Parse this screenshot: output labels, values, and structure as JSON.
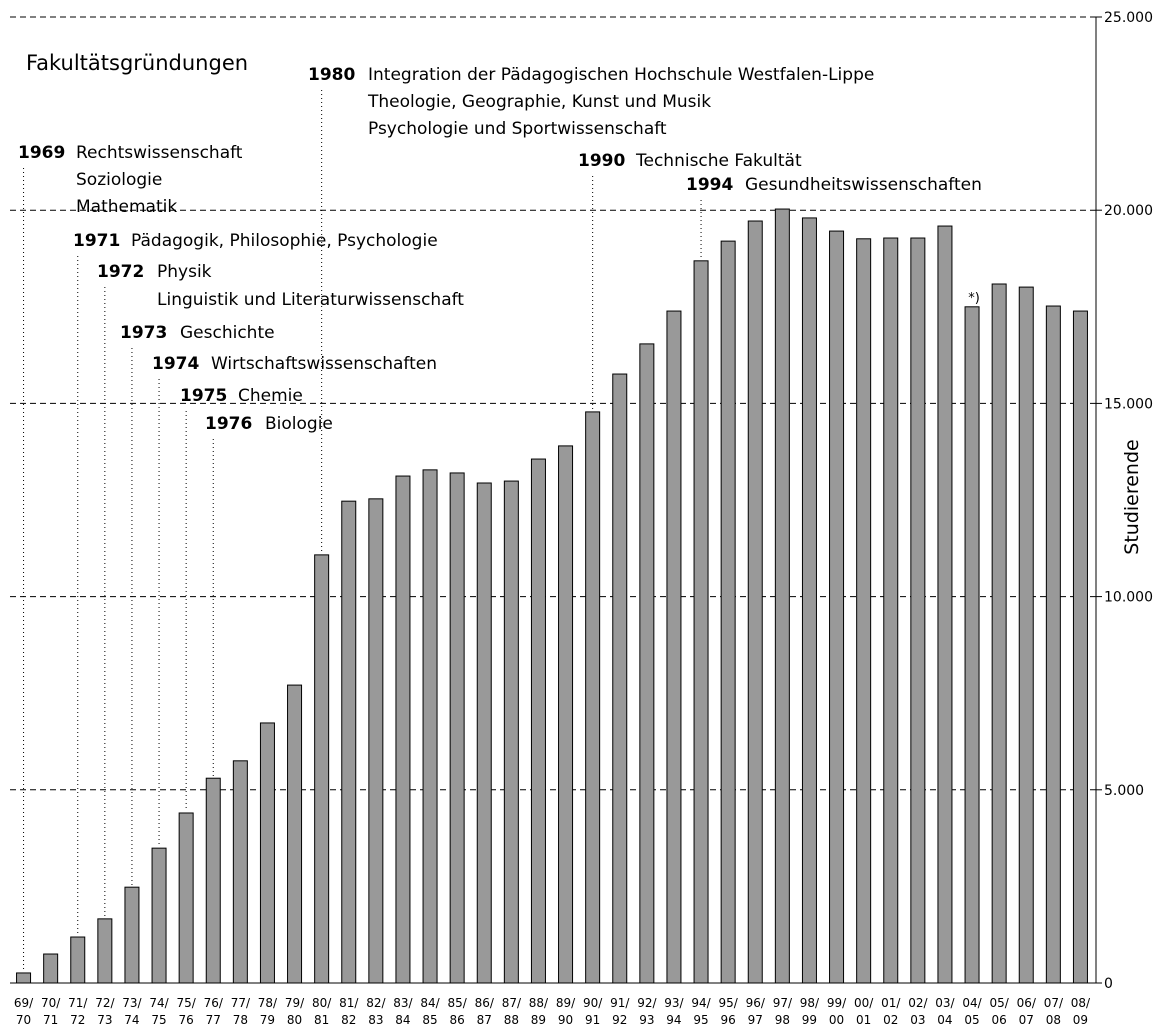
{
  "chart_data": {
    "type": "bar",
    "title": "Fakultätsgründungen",
    "y_label": "Studierende",
    "categories": [
      "69/70",
      "70/71",
      "71/72",
      "72/73",
      "73/74",
      "74/75",
      "75/76",
      "76/77",
      "77/78",
      "78/79",
      "79/80",
      "80/81",
      "81/82",
      "82/83",
      "83/84",
      "84/85",
      "85/86",
      "86/87",
      "87/88",
      "88/89",
      "89/90",
      "90/91",
      "91/92",
      "92/93",
      "93/94",
      "94/95",
      "95/96",
      "96/97",
      "97/98",
      "98/99",
      "99/00",
      "00/01",
      "01/02",
      "02/03",
      "03/04",
      "04/05",
      "05/06",
      "06/07",
      "07/08",
      "08/09"
    ],
    "values": [
      260,
      750,
      1190,
      1660,
      2480,
      3490,
      4400,
      5300,
      5750,
      6730,
      7710,
      11080,
      12470,
      12530,
      13120,
      13280,
      13200,
      12940,
      12990,
      13560,
      13900,
      14780,
      15760,
      16540,
      17390,
      18690,
      19200,
      19720,
      20030,
      19800,
      19460,
      19260,
      19280,
      19280,
      19590,
      17500,
      18090,
      18010,
      17520,
      17390
    ],
    "color": "#999999",
    "ylim": [
      0,
      25000
    ],
    "yticks": [
      0,
      {
        "value": 5000,
        "label": "5.000"
      },
      {
        "value": 10000,
        "label": "10.000"
      },
      {
        "value": 15000,
        "label": "15.000"
      },
      {
        "value": 20000,
        "label": "20.000"
      },
      {
        "value": 25000,
        "label": "25.000"
      }
    ],
    "grid": true,
    "note": "*)",
    "annotations": [
      {
        "year": "1969",
        "lines": [
          "Rechtswissenschaft",
          "Soziologie",
          "Mathematik"
        ]
      },
      {
        "year": "1971",
        "lines": [
          "Pädagogik, Philosophie, Psychologie"
        ]
      },
      {
        "year": "1972",
        "lines": [
          "Physik",
          "Linguistik und Literaturwissenschaft"
        ]
      },
      {
        "year": "1973",
        "lines": [
          "Geschichte"
        ]
      },
      {
        "year": "1974",
        "lines": [
          "Wirtschaftswissenschaften"
        ]
      },
      {
        "year": "1975",
        "lines": [
          "Chemie"
        ]
      },
      {
        "year": "1976",
        "lines": [
          "Biologie"
        ]
      },
      {
        "year": "1980",
        "lines": [
          "Integration der Pädagogischen Hochschule Westfalen-Lippe",
          "Theologie, Geographie, Kunst und Musik",
          "Psychologie und Sportwissenschaft"
        ]
      },
      {
        "year": "1990",
        "lines": [
          "Technische Fakultät"
        ]
      },
      {
        "year": "1994",
        "lines": [
          "Gesundheitswissenschaften"
        ]
      }
    ]
  }
}
